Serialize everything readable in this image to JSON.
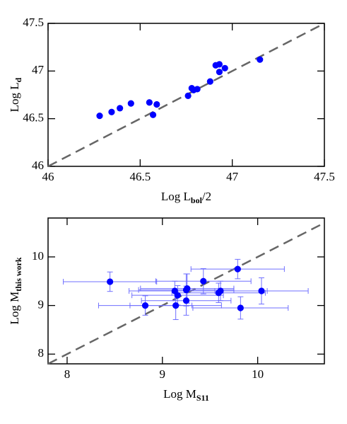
{
  "chart_data": [
    {
      "type": "scatter",
      "xlabel": {
        "text": "Log L",
        "sub": "bol",
        "tail": "/2"
      },
      "ylabel": {
        "text": "Log L",
        "sub": "d"
      },
      "x": [
        46.28,
        46.345,
        46.39,
        46.45,
        46.55,
        46.57,
        46.59,
        46.76,
        46.78,
        46.79,
        46.81,
        46.88,
        46.91,
        46.93,
        46.93,
        46.96,
        47.15
      ],
      "values": [
        46.53,
        46.57,
        46.61,
        46.66,
        46.67,
        46.54,
        46.65,
        46.74,
        46.82,
        46.8,
        46.81,
        46.89,
        47.06,
        47.07,
        46.99,
        47.03,
        47.12
      ],
      "color": "#0000ff",
      "xlim": [
        46,
        47.5
      ],
      "ylim": [
        46,
        47.5
      ],
      "xticks": [
        46,
        46.5,
        47,
        47.5
      ],
      "yticks": [
        46,
        46.5,
        47,
        47.5
      ],
      "identity_line": true,
      "identity_color": "#666666"
    },
    {
      "type": "scatter",
      "xlabel": {
        "text": "Log M",
        "sub": "S11"
      },
      "ylabel": {
        "text": "Log M",
        "sub": "this work"
      },
      "x": [
        8.45,
        8.82,
        9.13,
        9.16,
        9.14,
        9.25,
        9.26,
        9.25,
        9.43,
        9.61,
        9.59,
        9.79,
        9.82,
        10.04
      ],
      "values": [
        9.49,
        9.0,
        9.3,
        9.21,
        9.0,
        9.32,
        9.35,
        9.1,
        9.5,
        9.3,
        9.26,
        9.75,
        8.95,
        9.3
      ],
      "x_errors": [
        0.49,
        0.49,
        0.48,
        0.48,
        0.48,
        0.5,
        0.49,
        0.47,
        0.5,
        0.49,
        0.49,
        0.49,
        0.5,
        0.49
      ],
      "y_errors": [
        0.2,
        0.2,
        0.2,
        0.2,
        0.29,
        0.33,
        0.3,
        0.3,
        0.26,
        0.2,
        0.2,
        0.2,
        0.23,
        0.27
      ],
      "color": "#0000ff",
      "error_color": "#6f6fff",
      "xlim": [
        7.8,
        10.7
      ],
      "ylim": [
        7.8,
        10.8
      ],
      "xticks": [
        8,
        9,
        10
      ],
      "yticks": [
        8,
        9,
        10
      ],
      "identity_line": true,
      "identity_color": "#666666"
    }
  ]
}
